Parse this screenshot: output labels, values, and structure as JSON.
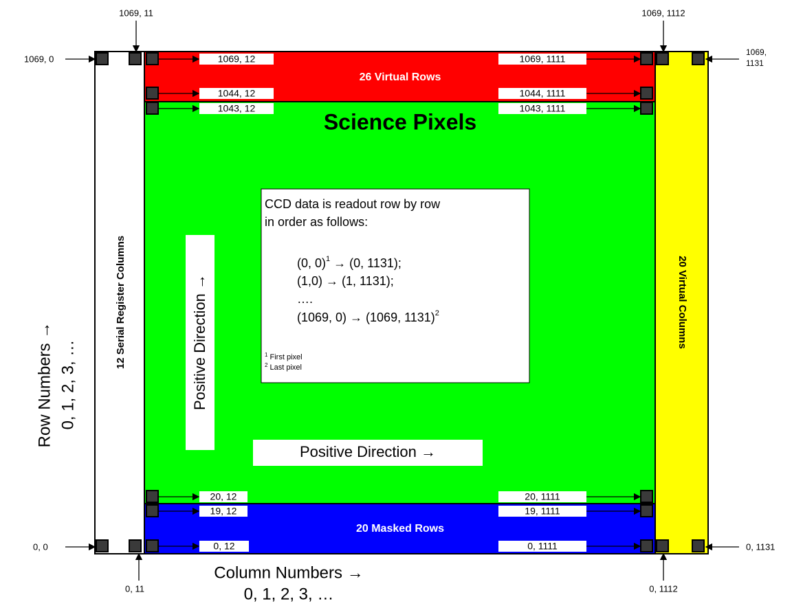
{
  "regions": {
    "virtual_rows": "26 Virtual Rows",
    "science": "Science Pixels",
    "masked_rows": "20 Masked Rows",
    "serial_columns": "12 Serial Register Columns",
    "virtual_columns": "20 Virtual Columns"
  },
  "corner_labels": [
    "1069, 11",
    "1069, 0",
    "1069, 1112",
    "1069,",
    "1131",
    "0, 0",
    "0, 11",
    "0, 1112",
    "0, 1131"
  ],
  "pixel_labels": [
    "1069, 12",
    "1069, 1111",
    "1044, 12",
    "1044, 1111",
    "1043, 12",
    "1043, 1111",
    "20, 12",
    "20, 1111",
    "19, 12",
    "19, 1111",
    "0, 12",
    "0, 1111"
  ],
  "info": {
    "intro": [
      "CCD data is readout row by row",
      "in order as follows:"
    ],
    "sequence": [
      {
        "start": "(0, 0)",
        "sup": "1",
        "end": " → (0, 1131);"
      },
      {
        "start": "(1,0) → (1, 1131);"
      },
      {
        "start": "…."
      },
      {
        "start": "(1069, 0) → (1069, 1131)",
        "sup": "2"
      }
    ],
    "notes": [
      {
        "mark": "1",
        "text": " First pixel"
      },
      {
        "mark": "2",
        "text": " Last pixel"
      }
    ]
  },
  "directions": {
    "vertical": "Positive Direction →",
    "horizontal": "Positive Direction →"
  },
  "axes": {
    "rows": {
      "title": "Row Numbers →",
      "values": "0, 1, 2, 3, …"
    },
    "columns": {
      "title": "Column Numbers →",
      "values": "0, 1, 2, 3, …"
    }
  }
}
